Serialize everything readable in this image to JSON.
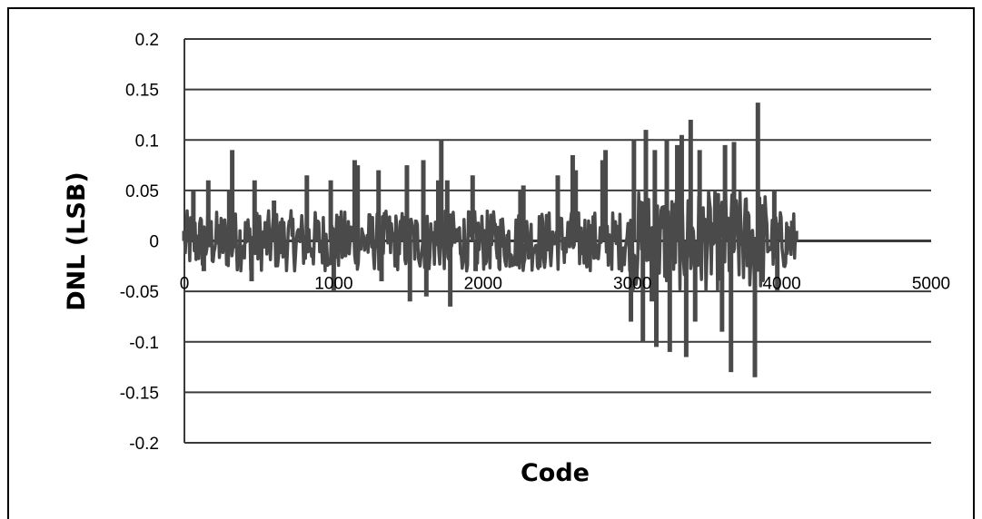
{
  "chart_data": {
    "type": "line",
    "xlabel": "Code",
    "ylabel": "DNL (LSB)",
    "xlim": [
      0,
      5000
    ],
    "ylim": [
      -0.2,
      0.2
    ],
    "x_ticks": [
      0,
      1000,
      2000,
      3000,
      4000,
      5000
    ],
    "y_ticks": [
      0.2,
      0.15,
      0.1,
      0.05,
      0,
      -0.05,
      -0.1,
      -0.15,
      -0.2
    ],
    "x_tick_labels": [
      "0",
      "1000",
      "2000",
      "3000",
      "4000",
      "5000"
    ],
    "y_tick_labels": [
      "0.2",
      "0.15",
      "0.1",
      "0.05",
      "0",
      "-0.05",
      "-0.1",
      "-0.15",
      "-0.2"
    ],
    "grid": "horizontal",
    "legend": "none",
    "series_color": "#4a4a4a",
    "x_range_of_data": [
      0,
      4095
    ],
    "series": [
      {
        "values_envelope": "dense noise around 0",
        "x": [
          0,
          60,
          130,
          160,
          300,
          320,
          450,
          470,
          600,
          820,
          980,
          1000,
          1140,
          1160,
          1300,
          1320,
          1490,
          1510,
          1600,
          1620,
          1700,
          1720,
          1760,
          1780,
          1930,
          1950,
          2250,
          2270,
          2500,
          2600,
          2620,
          2800,
          2820,
          2990,
          3010,
          3070,
          3090,
          3130,
          3150,
          3160,
          3230,
          3250,
          3300,
          3330,
          3360,
          3390,
          3420,
          3450,
          3600,
          3620,
          3660,
          3680,
          3820,
          3840,
          3950,
          3970,
          4070,
          4095
        ],
        "y": [
          0.01,
          0.05,
          -0.03,
          0.06,
          0.05,
          0.09,
          -0.04,
          0.06,
          0.04,
          0.065,
          0.06,
          -0.05,
          0.08,
          0.075,
          0.07,
          -0.04,
          0.075,
          -0.06,
          0.08,
          -0.055,
          0.06,
          0.1,
          0.06,
          -0.065,
          0.065,
          -0.03,
          0.05,
          0.055,
          0.065,
          0.085,
          0.07,
          0.08,
          0.09,
          -0.08,
          0.1,
          -0.1,
          0.11,
          -0.06,
          0.09,
          -0.105,
          0.1,
          -0.11,
          0.095,
          0.105,
          -0.115,
          0.12,
          -0.08,
          0.09,
          -0.09,
          0.095,
          -0.13,
          0.098,
          -0.135,
          0.137,
          0.05,
          -0.05,
          0.02,
          0.01
        ]
      }
    ]
  }
}
